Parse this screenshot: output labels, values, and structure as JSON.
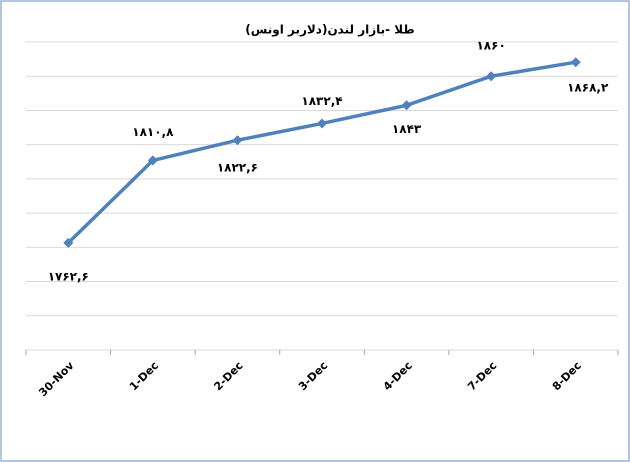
{
  "chart_data": {
    "type": "line",
    "title": "طلا -بازار لندن(دلاربر اونس)",
    "categories": [
      "30-Nov",
      "1-Dec",
      "2-Dec",
      "3-Dec",
      "4-Dec",
      "7-Dec",
      "8-Dec"
    ],
    "series": [
      {
        "name": "طلا",
        "color": "#4f81bd",
        "values": [
          1762.6,
          1810.8,
          1822.6,
          1832.4,
          1843,
          1860,
          1868.2
        ],
        "value_labels": [
          "۱۷۶۲,۶",
          "۱۸۱۰,۸",
          "۱۸۲۲,۶",
          "۱۸۳۲,۴",
          "۱۸۴۳",
          "۱۸۶۰",
          "۱۸۶۸,۲"
        ]
      }
    ],
    "ylim": [
      1700,
      1880
    ],
    "yticks": [
      1700,
      1720,
      1740,
      1760,
      1780,
      1800,
      1820,
      1840,
      1860,
      1880
    ],
    "grid": true
  }
}
